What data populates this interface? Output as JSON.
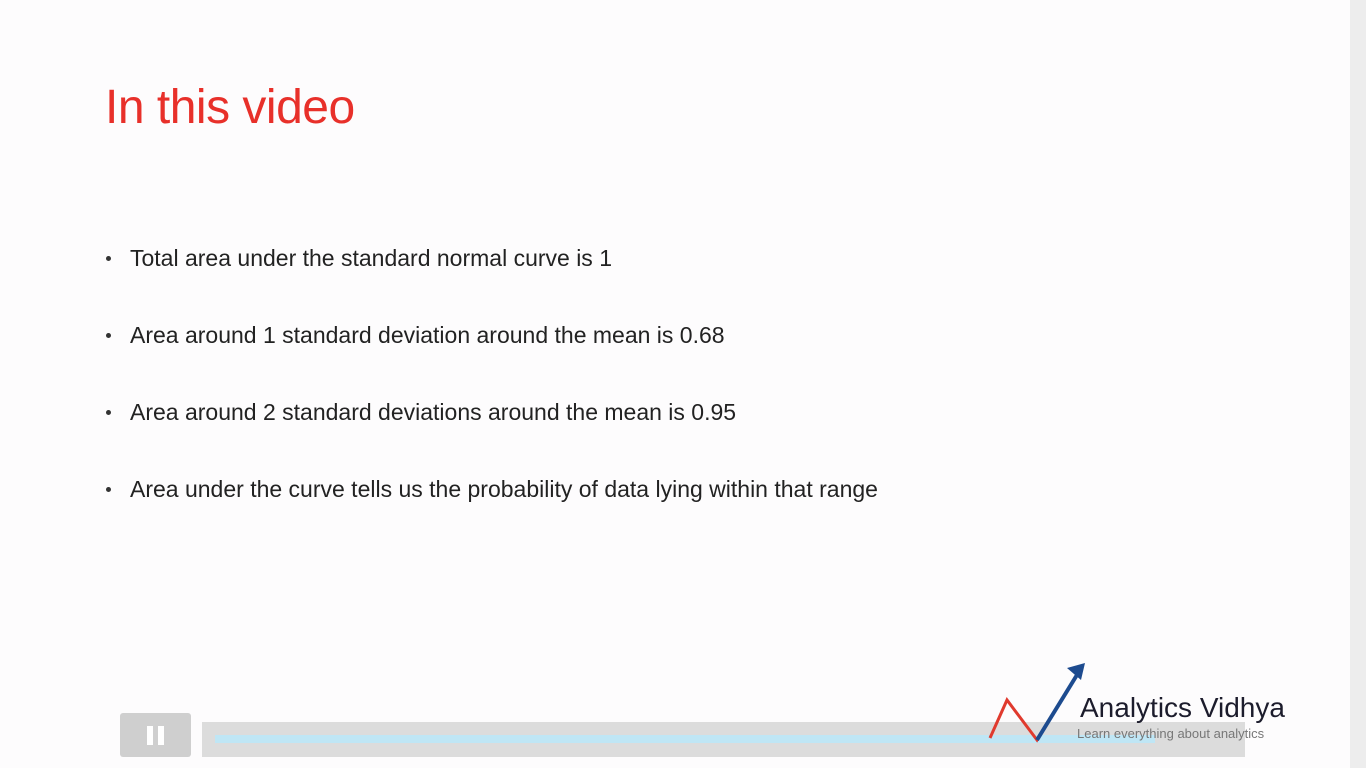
{
  "slide": {
    "title": "In this video",
    "bullets": [
      "Total area under the standard normal curve is 1",
      "Area around 1 standard deviation around the mean is 0.68",
      "Area around 2 standard deviations around the mean is 0.95",
      "Area under the curve tells us the probability of data lying within that range"
    ]
  },
  "logo": {
    "name": "Analytics Vidhya",
    "tagline": "Learn everything about analytics"
  }
}
